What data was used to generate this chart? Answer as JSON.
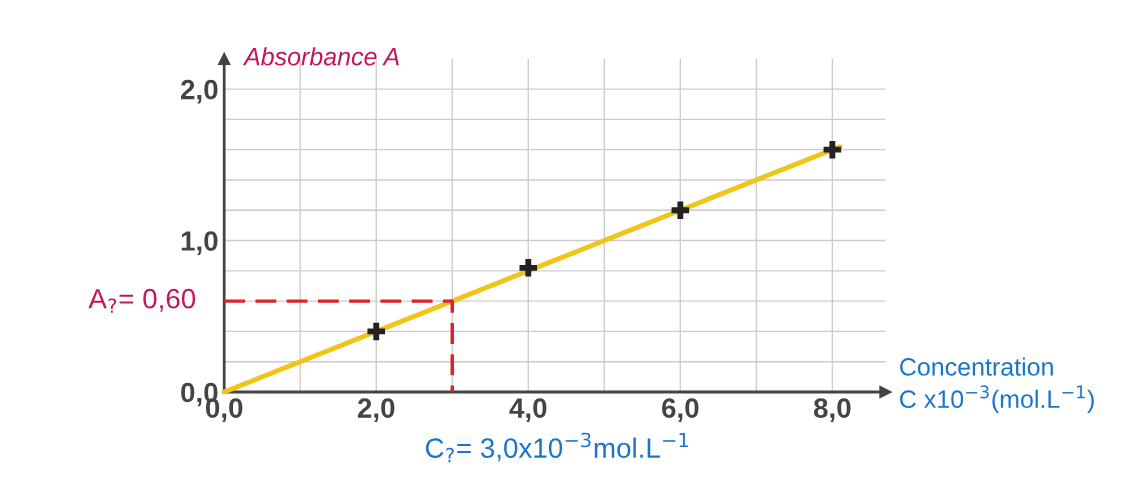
{
  "chart_data": {
    "type": "scatter",
    "ylabel": "Absorbance A",
    "xlabel": "Concentration\nC x10$^{−3}$(mol.L$^{−1}$)",
    "xlim": [
      0,
      8.7
    ],
    "ylim": [
      0,
      2.2
    ],
    "xticks": [
      {
        "value": 0,
        "label": "0,0"
      },
      {
        "value": 1,
        "label": null
      },
      {
        "value": 2,
        "label": "2,0"
      },
      {
        "value": 3,
        "label": null
      },
      {
        "value": 4,
        "label": "4,0"
      },
      {
        "value": 5,
        "label": null
      },
      {
        "value": 6,
        "label": "6,0"
      },
      {
        "value": 7,
        "label": null
      },
      {
        "value": 8,
        "label": "8,0"
      }
    ],
    "yticks": [
      {
        "value": 0,
        "label": "0,0"
      },
      {
        "value": 0.2,
        "label": null
      },
      {
        "value": 0.4,
        "label": null
      },
      {
        "value": 0.6,
        "label": null
      },
      {
        "value": 0.8,
        "label": null
      },
      {
        "value": 1.0,
        "label": "1,0"
      },
      {
        "value": 1.2,
        "label": null
      },
      {
        "value": 1.4,
        "label": null
      },
      {
        "value": 1.6,
        "label": null
      },
      {
        "value": 1.8,
        "label": null
      },
      {
        "value": 2.0,
        "label": "2,0"
      }
    ],
    "grid": true,
    "legend": false,
    "marker": "cross",
    "series": [
      {
        "type": "line",
        "color": "#f0c419",
        "x": [
          0,
          8.1
        ],
        "values": [
          0,
          1.62
        ],
        "marker": "none",
        "line_style": "solid"
      },
      {
        "color": "#222222",
        "x": [
          2,
          4,
          6,
          8
        ],
        "values": [
          0.4,
          0.82,
          1.2,
          1.6
        ]
      },
      {
        "type": "line",
        "color": "#d9232a",
        "x": [
          0,
          3,
          3
        ],
        "values": [
          0.6,
          0.6,
          0
        ],
        "marker": "none",
        "line_style": "dashed"
      }
    ],
    "annotations": [
      {
        "text": "A$_{?}$= 0,60",
        "x": 0,
        "y": 0.6
      },
      {
        "text": "C$_{?}$= 3,0x10$^{−3}$mol.L$^{−1}$",
        "x": 3,
        "y": 0
      }
    ]
  }
}
